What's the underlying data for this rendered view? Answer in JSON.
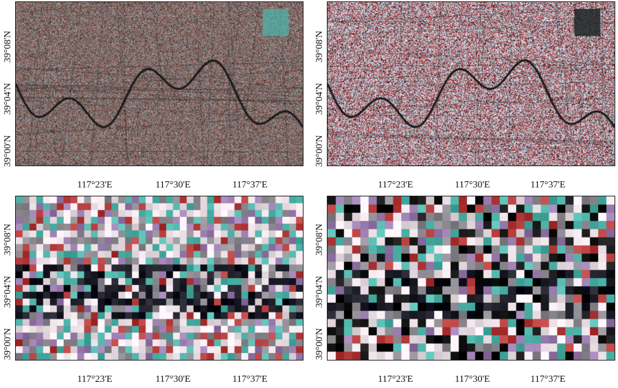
{
  "latitude_ticks": [
    "39°00'N",
    "39°04'N",
    "39°08'N"
  ],
  "longitude_ticks": [
    "117°23'E",
    "117°30'E",
    "117°37'E"
  ],
  "panels": [
    {
      "id": "top-left",
      "style": "true-color",
      "pixel_blocks": 1
    },
    {
      "id": "top-right",
      "style": "false-color",
      "pixel_blocks": 1
    },
    {
      "id": "bottom-left",
      "style": "coarse-mosaic",
      "pixel_blocks": 10
    },
    {
      "id": "bottom-right",
      "style": "coarse-mosaic-alt",
      "pixel_blocks": 12
    }
  ],
  "colors": {
    "river": "#1a1a1a",
    "frame": "#222222",
    "urban_gray": "#8c8a90",
    "soil_brown": "#8a5c52",
    "vegetation_red": "#b23a3a",
    "water_teal": "#4fb2a8"
  }
}
